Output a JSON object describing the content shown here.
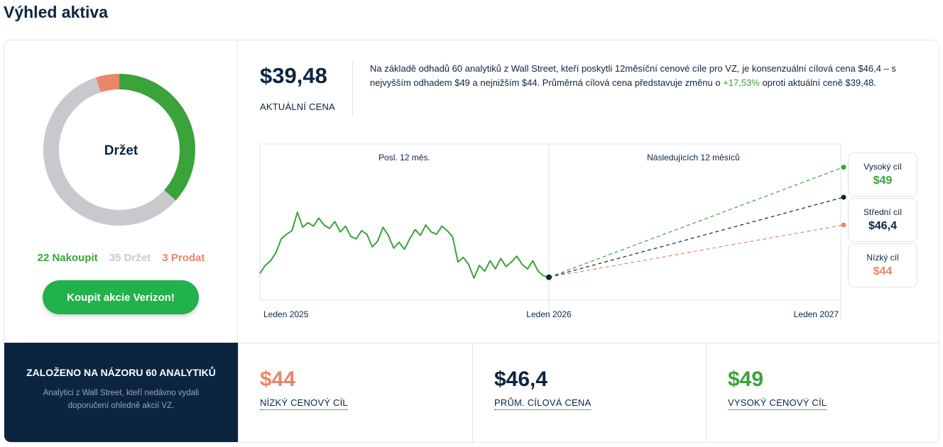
{
  "page": {
    "title": "Výhled aktiva"
  },
  "consensus": {
    "rating": "Držet",
    "buy_label": "22 Nakoupit",
    "hold_label": "35 Držet",
    "sell_label": "3 Prodat",
    "buy": 22,
    "hold": 35,
    "sell": 3,
    "colors": {
      "buy": "#3aa33a",
      "hold": "#c9c8cd",
      "sell": "#e8866a"
    },
    "cta_label": "Koupit akcie Verizon!"
  },
  "price": {
    "value": "$39,48",
    "label": "AKTUÁLNÍ CENA"
  },
  "summary": {
    "text_before": "Na základě odhadů 60 analytiků z Wall Street, kteří poskytli 12měsíční cenové cíle pro VZ, je konsenzuální cílová cena $46,4 – s nejvyšším odhadem $49 a nejnižším $44. Průměrná cílová cena představuje změnu o ",
    "change": "+17,53%",
    "text_after": " oproti aktuální ceně $39,48."
  },
  "targets": {
    "high": {
      "label": "Vysoký cíl",
      "value": "$49",
      "color": "#3aa33a"
    },
    "mid": {
      "label": "Střední cíl",
      "value": "$46,4",
      "color": "#0b2540"
    },
    "low": {
      "label": "Nízký cíl",
      "value": "$44",
      "color": "#e8866a"
    }
  },
  "chart_data": {
    "type": "line",
    "section_labels": [
      "Posl. 12 měs.",
      "Následujících 12 měsíců"
    ],
    "x_ticks": [
      "Leden 2025",
      "Leden 2026",
      "Leden 2027"
    ],
    "series": [
      {
        "values": [
          39.8,
          40.5,
          40.9,
          41.6,
          42.8,
          43.2,
          43.5,
          45.1,
          43.8,
          44.2,
          43.9,
          44.6,
          44.0,
          43.7,
          44.3,
          43.4,
          43.9,
          43.0,
          42.8,
          43.5,
          43.2,
          42.1,
          42.6,
          43.8,
          43.1,
          42.0,
          42.5,
          41.9,
          42.8,
          43.6,
          43.1,
          44.0,
          43.4,
          43.2,
          43.9,
          43.5,
          43.0,
          40.8,
          41.2,
          40.6,
          39.4,
          40.5,
          40.0,
          40.9,
          40.2,
          41.1,
          40.4,
          40.8,
          41.3,
          40.6,
          40.2,
          40.9,
          40.0,
          39.6,
          39.48
        ]
      }
    ],
    "forecast": {
      "start": 39.48,
      "high": 49,
      "mid": 46.4,
      "low": 44
    }
  },
  "footer": {
    "title": "ZALOŽENO NA NÁZORU 60 ANALYTIKŮ",
    "subtitle": "Analytici z Wall Street, kteří nedávno vydali doporučení ohledně akcií VZ.",
    "low": {
      "value": "$44",
      "label": "NÍZKÝ CENOVÝ CÍL",
      "color": "#e8866a"
    },
    "avg": {
      "value": "$46,4",
      "label": "PRŮM. CÍLOVÁ CENA",
      "color": "#0b2540"
    },
    "high": {
      "value": "$49",
      "label": "VYSOKÝ CENOVÝ CÍL",
      "color": "#3aa33a"
    }
  }
}
